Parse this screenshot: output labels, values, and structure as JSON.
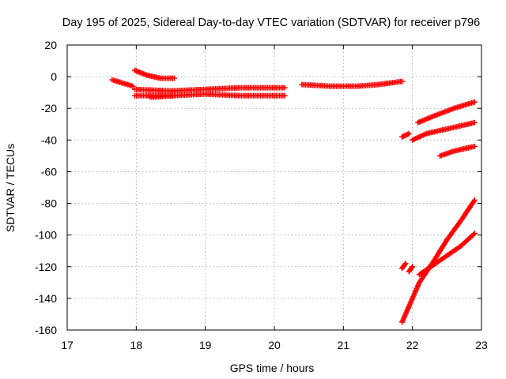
{
  "chart_data": {
    "type": "scatter",
    "title": "Day 195 of 2025, Sidereal Day-to-day VTEC variation (SDTVAR) for receiver p796",
    "xlabel": "GPS time / hours",
    "ylabel": "SDTVAR / TECUs",
    "xlim": [
      17,
      23
    ],
    "ylim": [
      -160,
      20
    ],
    "xticks": [
      17,
      18,
      19,
      20,
      21,
      22,
      23
    ],
    "yticks": [
      -160,
      -140,
      -120,
      -100,
      -80,
      -60,
      -40,
      -20,
      0,
      20
    ],
    "grid": true,
    "legend": "none",
    "marker": "plus",
    "color": "#ff0000",
    "series": [
      {
        "x": [
          17.65,
          17.95
        ],
        "y": [
          -2,
          -6
        ]
      },
      {
        "x": [
          17.98,
          18.15,
          18.35,
          18.55
        ],
        "y": [
          4,
          1,
          -1,
          -1
        ]
      },
      {
        "x": [
          17.98,
          18.5,
          19.0,
          19.5,
          20.0,
          20.15
        ],
        "y": [
          -8,
          -9,
          -8,
          -7,
          -7,
          -7
        ]
      },
      {
        "x": [
          17.98,
          18.5,
          19.0,
          19.5,
          20.0,
          20.15
        ],
        "y": [
          -12,
          -12,
          -11,
          -12,
          -12,
          -12
        ]
      },
      {
        "x": [
          18.2,
          18.55
        ],
        "y": [
          -13,
          -12
        ]
      },
      {
        "x": [
          20.4,
          20.8,
          21.2,
          21.5,
          21.85
        ],
        "y": [
          -5,
          -6,
          -6,
          -5,
          -3
        ]
      },
      {
        "x": [
          21.85,
          21.95
        ],
        "y": [
          -38,
          -36
        ]
      },
      {
        "x": [
          22.0,
          22.2,
          22.5,
          22.9
        ],
        "y": [
          -40,
          -36,
          -33,
          -29
        ]
      },
      {
        "x": [
          22.08,
          22.3,
          22.6,
          22.9
        ],
        "y": [
          -29,
          -25,
          -20,
          -16
        ]
      },
      {
        "x": [
          22.4,
          22.6,
          22.9
        ],
        "y": [
          -50,
          -47,
          -44
        ]
      },
      {
        "x": [
          21.85,
          21.9
        ],
        "y": [
          -121,
          -118
        ]
      },
      {
        "x": [
          21.95,
          22.0
        ],
        "y": [
          -123,
          -120
        ]
      },
      {
        "x": [
          22.1,
          22.4,
          22.7,
          22.9
        ],
        "y": [
          -125,
          -116,
          -107,
          -99
        ]
      },
      {
        "x": [
          21.85,
          21.95,
          22.1,
          22.3,
          22.5,
          22.7,
          22.9
        ],
        "y": [
          -155,
          -145,
          -130,
          -117,
          -103,
          -91,
          -78
        ]
      }
    ]
  }
}
